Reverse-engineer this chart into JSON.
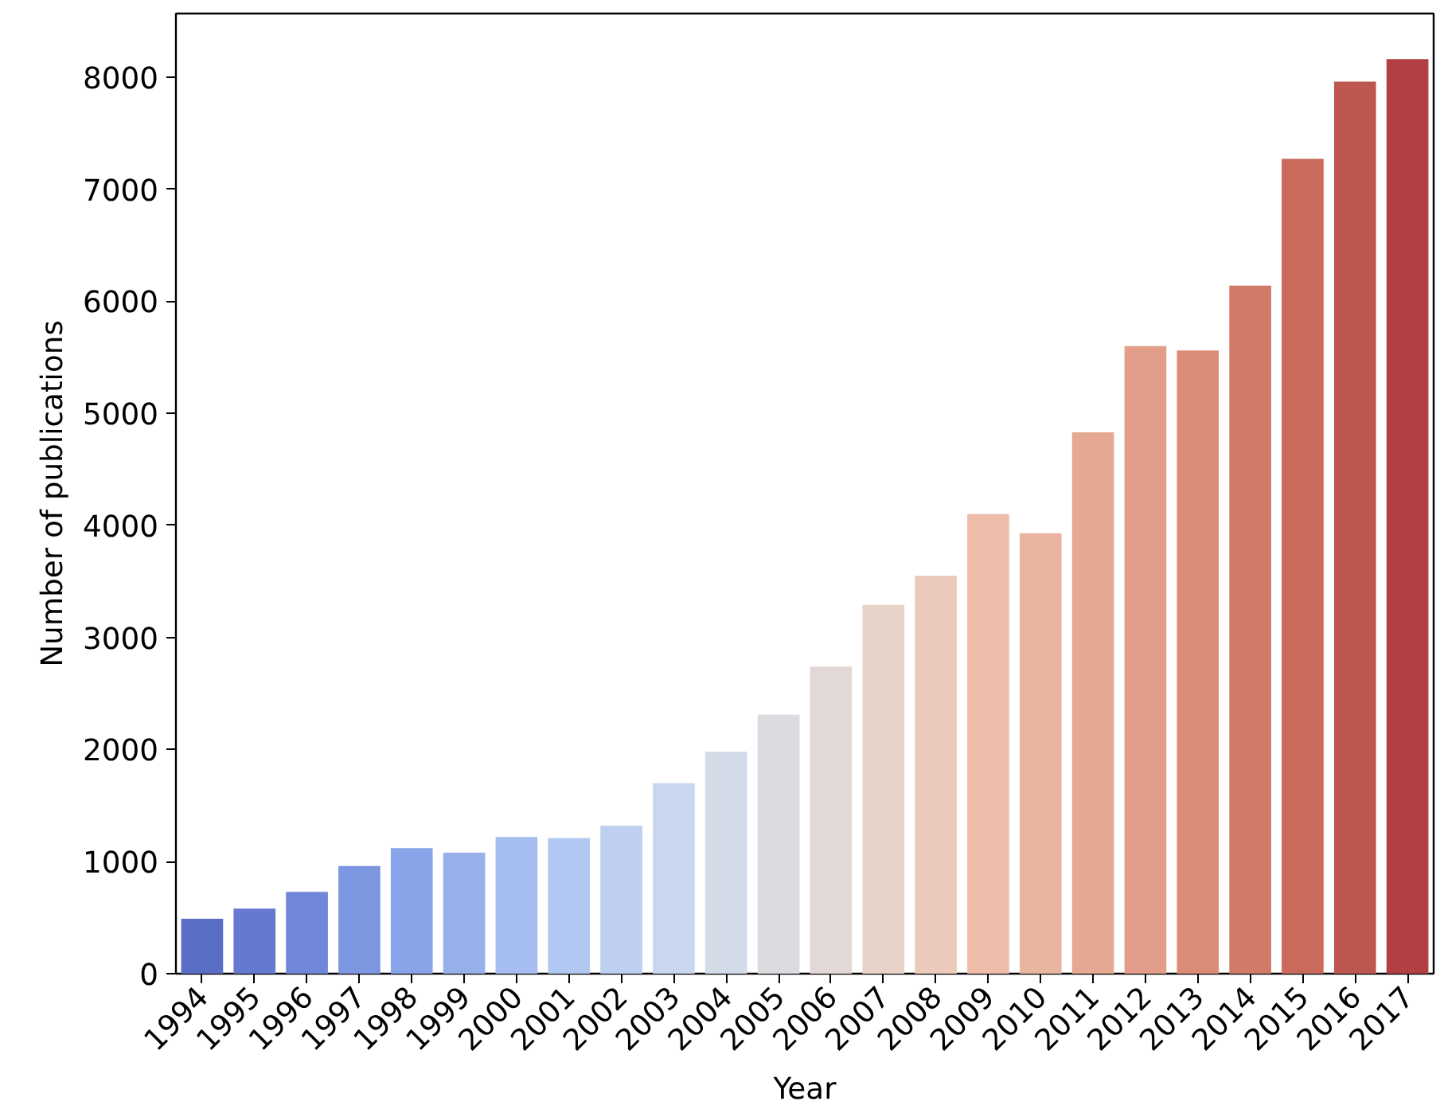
{
  "chart_data": {
    "type": "bar",
    "xlabel": "Year",
    "ylabel": "Number of publications",
    "categories": [
      "1994",
      "1995",
      "1996",
      "1997",
      "1998",
      "1999",
      "2000",
      "2001",
      "2002",
      "2003",
      "2004",
      "2005",
      "2006",
      "2007",
      "2008",
      "2009",
      "2010",
      "2011",
      "2012",
      "2013",
      "2014",
      "2015",
      "2016",
      "2017"
    ],
    "values": [
      490,
      580,
      730,
      960,
      1120,
      1080,
      1220,
      1210,
      1320,
      1700,
      1980,
      2310,
      2740,
      3290,
      3550,
      4100,
      3930,
      4830,
      5600,
      5560,
      6140,
      7270,
      7960,
      8160
    ],
    "colors": [
      "#5b6ec5",
      "#6579d0",
      "#7087d9",
      "#7d96e0",
      "#89a4e8",
      "#97b0ec",
      "#a5bdf1",
      "#b1c8f3",
      "#becff2",
      "#c9d6ef",
      "#d3dbe8",
      "#dadce0",
      "#e2d9d6",
      "#e8d3c9",
      "#ebc9bb",
      "#edbda9",
      "#e9b59e",
      "#e5a992",
      "#e29e88",
      "#db8c76",
      "#d27a68",
      "#c96a5d",
      "#be5750",
      "#b13f44"
    ],
    "ylim": [
      0,
      8567
    ],
    "yticks": [
      0,
      1000,
      2000,
      3000,
      4000,
      5000,
      6000,
      7000,
      8000
    ],
    "grid": false
  }
}
